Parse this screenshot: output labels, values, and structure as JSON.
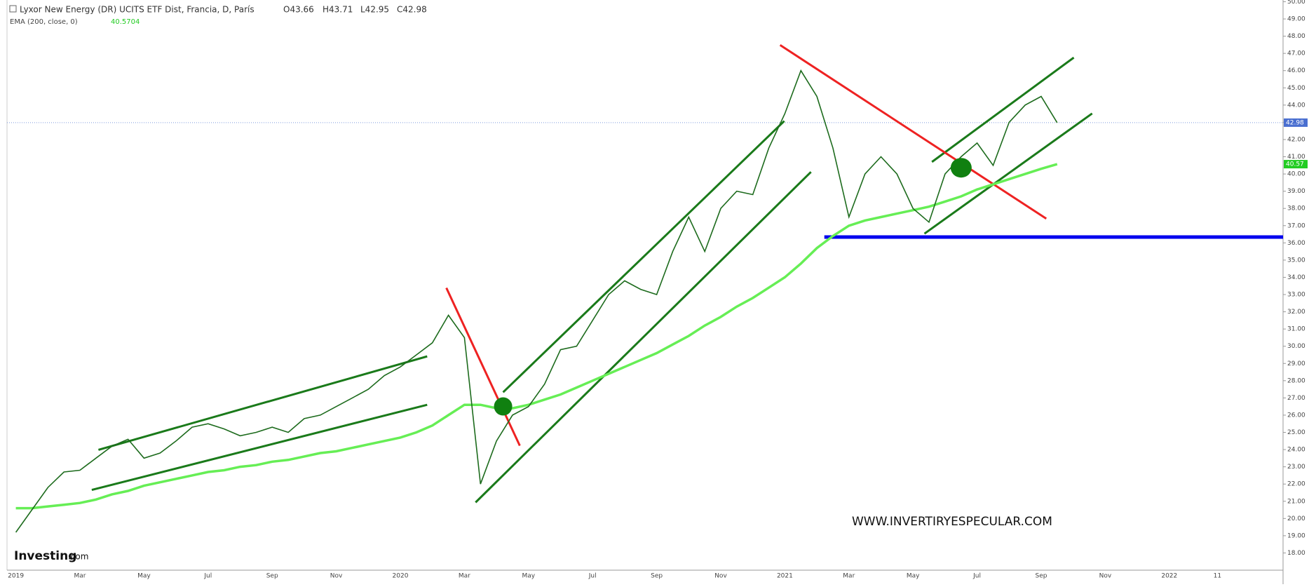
{
  "header": {
    "title": "Lyxor New Energy (DR) UCITS ETF Dist, Francia, D, París",
    "open": "O43.66",
    "high": "H43.71",
    "low": "L42.95",
    "close": "C42.98",
    "indicator": "EMA (200, close, 0)",
    "indicator_value": "40.5704"
  },
  "watermark": "WWW.INVERTIRYESPECULAR.COM",
  "logo": {
    "brand": "Investing",
    "suffix": ".com"
  },
  "chart_data": {
    "type": "line",
    "categories": [
      "2019",
      null,
      null,
      null,
      "Mar",
      null,
      null,
      null,
      "May",
      null,
      null,
      null,
      "Jul",
      null,
      null,
      null,
      "Sep",
      null,
      null,
      null,
      "Nov",
      null,
      null,
      null,
      "2020",
      null,
      null,
      null,
      "Mar",
      null,
      null,
      null,
      "May",
      null,
      null,
      null,
      "Jul",
      null,
      null,
      null,
      "Sep",
      null,
      null,
      null,
      "Nov",
      null,
      null,
      null,
      "2021",
      null,
      null,
      null,
      "Mar",
      null,
      null,
      null,
      "May",
      null,
      null,
      null,
      "Jul",
      null,
      null,
      null,
      "Sep",
      null,
      null,
      null,
      "Nov",
      null,
      null,
      null,
      "2022",
      null,
      null,
      "11"
    ],
    "series": [
      {
        "color": "#1d6b1d",
        "values": [
          19.2,
          20.5,
          21.8,
          22.7,
          22.8,
          23.5,
          24.2,
          24.6,
          23.5,
          23.8,
          24.5,
          25.3,
          25.5,
          25.2,
          24.8,
          25.0,
          25.3,
          25.0,
          25.8,
          26.0,
          26.5,
          27.0,
          27.5,
          28.3,
          28.8,
          29.5,
          30.2,
          31.8,
          30.5,
          22.0,
          24.5,
          26.0,
          26.5,
          27.8,
          29.8,
          30.0,
          31.5,
          33.0,
          33.8,
          33.3,
          33.0,
          35.5,
          37.5,
          35.5,
          38.0,
          39.0,
          38.8,
          41.5,
          43.5,
          46.0,
          44.5,
          41.5,
          37.5,
          40.0,
          41.0,
          40.0,
          38.0,
          37.2,
          40.0,
          41.0,
          41.8,
          40.5,
          43.0,
          44.0,
          44.5,
          42.98,
          null,
          null,
          null,
          null,
          null,
          null,
          null,
          null,
          null,
          null
        ]
      },
      {
        "color": "#66ee55",
        "values": [
          20.6,
          20.6,
          20.7,
          20.8,
          20.9,
          21.1,
          21.4,
          21.6,
          21.9,
          22.1,
          22.3,
          22.5,
          22.7,
          22.8,
          23.0,
          23.1,
          23.3,
          23.4,
          23.6,
          23.8,
          23.9,
          24.1,
          24.3,
          24.5,
          24.7,
          25.0,
          25.4,
          26.0,
          26.6,
          26.6,
          26.4,
          26.4,
          26.6,
          26.9,
          27.2,
          27.6,
          28.0,
          28.4,
          28.8,
          29.2,
          29.6,
          30.1,
          30.6,
          31.2,
          31.7,
          32.3,
          32.8,
          33.4,
          34.0,
          34.8,
          35.7,
          36.4,
          37.0,
          37.3,
          37.5,
          37.7,
          37.9,
          38.1,
          38.4,
          38.7,
          39.1,
          39.4,
          39.7,
          40.0,
          40.3,
          40.57,
          null,
          null,
          null,
          null,
          null,
          null,
          null,
          null,
          null,
          null
        ]
      }
    ],
    "price_markers": [
      {
        "value": 42.98,
        "color": "#4a6fd0"
      },
      {
        "value": 40.57,
        "color": "#22cc22"
      }
    ],
    "ylim": [
      17,
      50.1
    ],
    "yticks": [
      {
        "value": 18,
        "label": "18.00"
      },
      {
        "value": 19,
        "label": "19.00"
      },
      {
        "value": 20,
        "label": "20.00"
      },
      {
        "value": 21,
        "label": "21.00"
      },
      {
        "value": 22,
        "label": "22.00"
      },
      {
        "value": 23,
        "label": "23.00"
      },
      {
        "value": 24,
        "label": "24.00"
      },
      {
        "value": 25,
        "label": "25.00"
      },
      {
        "value": 26,
        "label": "26.00"
      },
      {
        "value": 27,
        "label": "27.00"
      },
      {
        "value": 28,
        "label": "28.00"
      },
      {
        "value": 29,
        "label": "29.00"
      },
      {
        "value": 30,
        "label": "30.00"
      },
      {
        "value": 31,
        "label": "31.00"
      },
      {
        "value": 32,
        "label": "32.00"
      },
      {
        "value": 33,
        "label": "33.00"
      },
      {
        "value": 34,
        "label": "34.00"
      },
      {
        "value": 35,
        "label": "35.00"
      },
      {
        "value": 36,
        "label": "36.00"
      },
      {
        "value": 37,
        "label": "37.00"
      },
      {
        "value": 38,
        "label": "38.00"
      },
      {
        "value": 39,
        "label": "39.00"
      },
      {
        "value": 40,
        "label": "40.00"
      },
      {
        "value": 41,
        "label": "41.00"
      },
      {
        "value": 42,
        "label": "42.00"
      },
      {
        "value": 43,
        "label": "43.00"
      },
      {
        "value": 44,
        "label": "44.00"
      },
      {
        "value": 45,
        "label": "45.00"
      },
      {
        "value": 46,
        "label": "46.00"
      },
      {
        "value": 47,
        "label": "47.00"
      },
      {
        "value": 48,
        "label": "48.00"
      },
      {
        "value": 49,
        "label": "49.00"
      },
      {
        "value": 50,
        "label": "50.00"
      }
    ]
  }
}
